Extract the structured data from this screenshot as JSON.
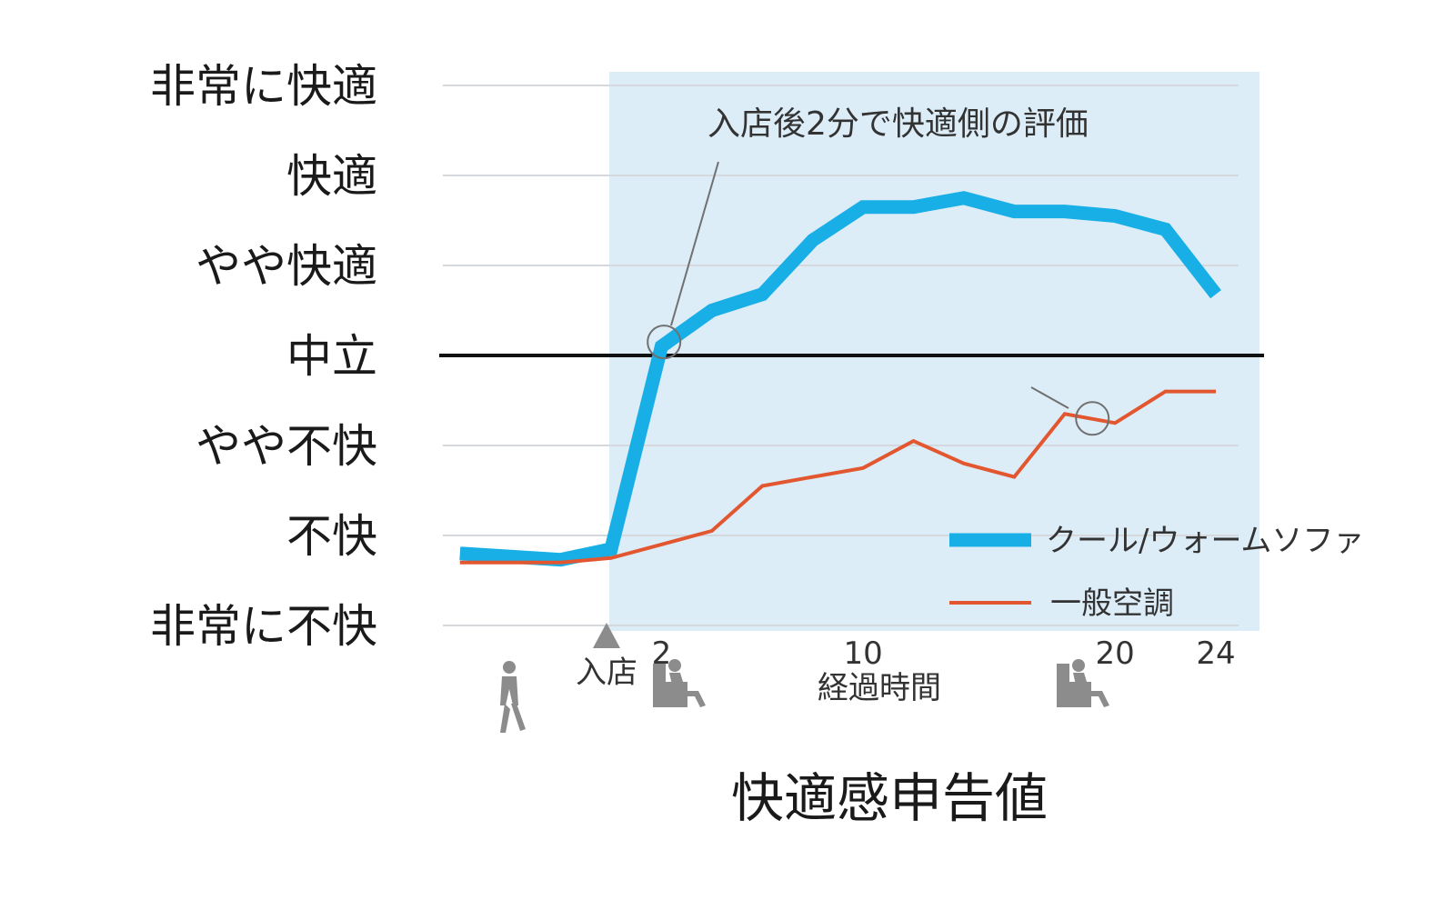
{
  "colors": {
    "shade": "#dcedf8",
    "grid": "#d5d9dd",
    "neutral_line": "#111111",
    "series_sofa": "#18aee6",
    "series_ac": "#e2572f",
    "icon": "#8c8c8c",
    "callout": "#707070"
  },
  "icons": [
    "walking-person-icon",
    "entry-triangle-icon",
    "seated-person-icon"
  ],
  "chart_data": {
    "type": "line",
    "title": "快適感申告値",
    "xlabel": "経過時間",
    "ylabel": "",
    "ylim": [
      -3,
      3
    ],
    "grid": true,
    "legend_position": "bottom-right",
    "y_categories": [
      "非常に不快",
      "不快",
      "やや不快",
      "中立",
      "やや快適",
      "快適",
      "非常に快適"
    ],
    "x_tick_labels": [
      {
        "x": 2,
        "label": "2"
      },
      {
        "x": 10,
        "label": "10"
      },
      {
        "x": 20,
        "label": "20"
      },
      {
        "x": 24,
        "label": "24"
      }
    ],
    "entry_marker": {
      "x": 0,
      "label": "入店"
    },
    "annotation": {
      "text": "入店後2分で快適側の評価"
    },
    "series": [
      {
        "name": "クール/ウォームソファ",
        "x": [
          -6,
          -2,
          0,
          2,
          4,
          6,
          8,
          10,
          12,
          14,
          16,
          18,
          20,
          22,
          24
        ],
        "y": [
          -2.2,
          -2.27,
          -2.15,
          0.1,
          0.5,
          0.68,
          1.28,
          1.65,
          1.65,
          1.75,
          1.6,
          1.6,
          1.55,
          1.4,
          0.68
        ]
      },
      {
        "name": "一般空調",
        "x": [
          -6,
          -2,
          0,
          2,
          4,
          6,
          8,
          10,
          12,
          14,
          16,
          18,
          20,
          22,
          24
        ],
        "y": [
          -2.3,
          -2.3,
          -2.25,
          -2.1,
          -1.95,
          -1.45,
          -1.35,
          -1.25,
          -0.95,
          -1.2,
          -1.35,
          -0.65,
          -0.75,
          -0.4,
          -0.4
        ]
      }
    ]
  }
}
